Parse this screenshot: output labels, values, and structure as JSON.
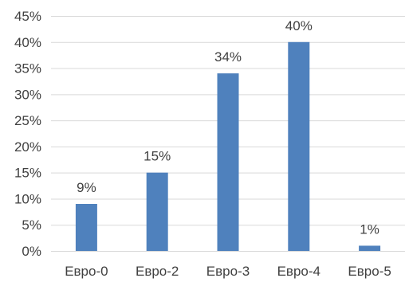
{
  "chart_data": {
    "type": "bar",
    "title": "",
    "xlabel": "",
    "ylabel": "",
    "categories": [
      "Евро-0",
      "Евро-2",
      "Евро-3",
      "Евро-4",
      "Евро-5"
    ],
    "values": [
      9,
      15,
      34,
      40,
      1
    ],
    "data_labels": [
      "9%",
      "15%",
      "34%",
      "40%",
      "1%"
    ],
    "ylim": [
      0,
      45
    ],
    "y_ticks": [
      0,
      5,
      10,
      15,
      20,
      25,
      30,
      35,
      40,
      45
    ],
    "y_tick_labels": [
      "0%",
      "5%",
      "10%",
      "15%",
      "20%",
      "25%",
      "30%",
      "35%",
      "40%",
      "45%"
    ],
    "grid": true,
    "legend": "none",
    "bar_color": "#4f81bd"
  }
}
